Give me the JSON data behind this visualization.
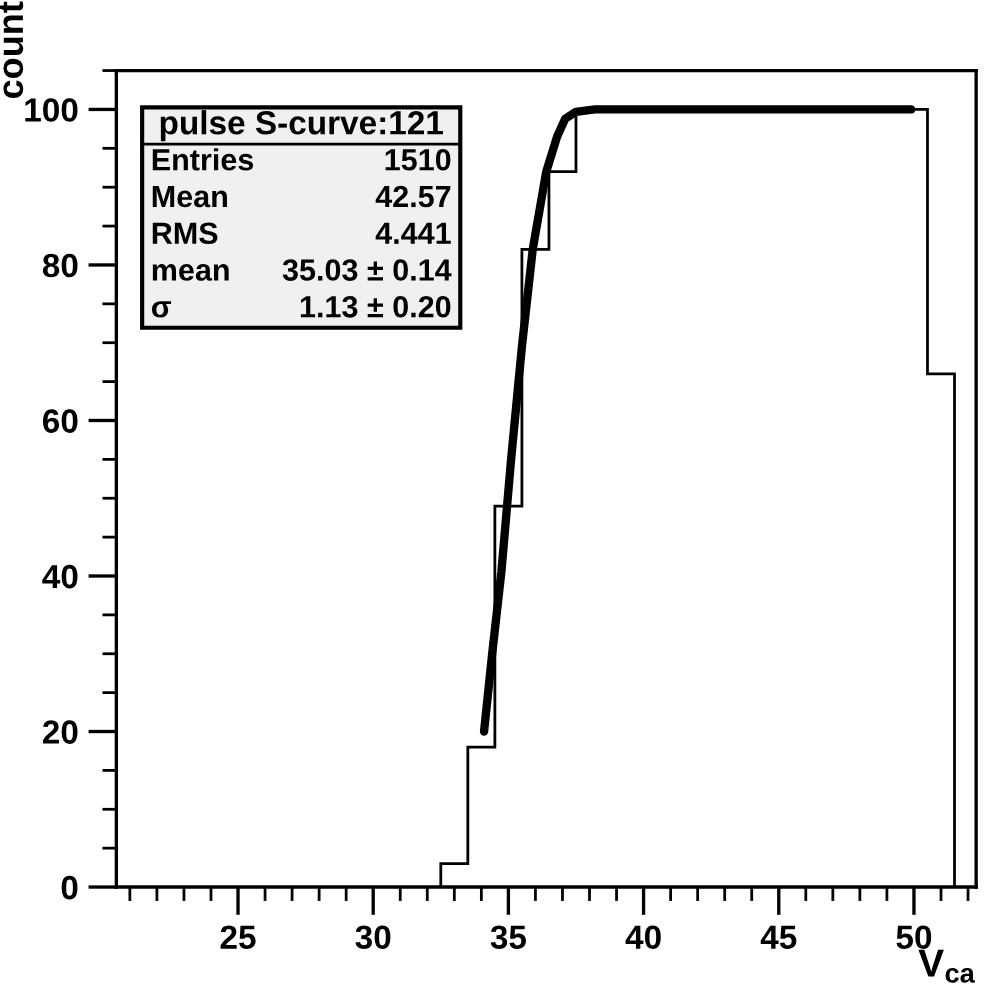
{
  "chart_data": {
    "type": "histogram",
    "xlabel": "V$_{ca}$",
    "ylabel": "count",
    "bins": [
      32.5,
      33.5,
      34.5,
      35.5,
      36.5,
      37.5,
      38.5,
      39.5,
      40.5,
      41.5,
      42.5,
      43.5,
      44.5,
      45.5,
      46.5,
      47.5,
      48.5,
      49.5,
      50.5,
      51.5
    ],
    "values": [
      3,
      18,
      49,
      82,
      92,
      100,
      100,
      100,
      100,
      100,
      100,
      100,
      100,
      100,
      100,
      100,
      100,
      100,
      66
    ],
    "color": "#000000",
    "series": [
      {
        "type": "line",
        "color": "#000000",
        "x": [
          34.1,
          34.4,
          34.74,
          35.1,
          35.5,
          35.9,
          36.4,
          36.8,
          37.1,
          37.5,
          38.2,
          49.9
        ],
        "values": [
          20,
          30,
          40.5,
          55,
          69.5,
          82,
          92,
          96.5,
          98.8,
          99.7,
          100,
          100
        ]
      }
    ],
    "xlim": [
      20.5,
      52.3
    ],
    "ylim": [
      0,
      105
    ],
    "xticks": [
      25,
      30,
      35,
      40,
      45,
      50
    ],
    "yticks": [
      0,
      20,
      40,
      60,
      80,
      100
    ],
    "annotations": [
      "pulse S-curve:121",
      "Entries 1510",
      "Mean 42.57",
      "RMS 4.441",
      "mean 35.03 ± 0.14",
      "σ 1.13 ± 0.20"
    ],
    "grid": false,
    "legend": false
  }
}
